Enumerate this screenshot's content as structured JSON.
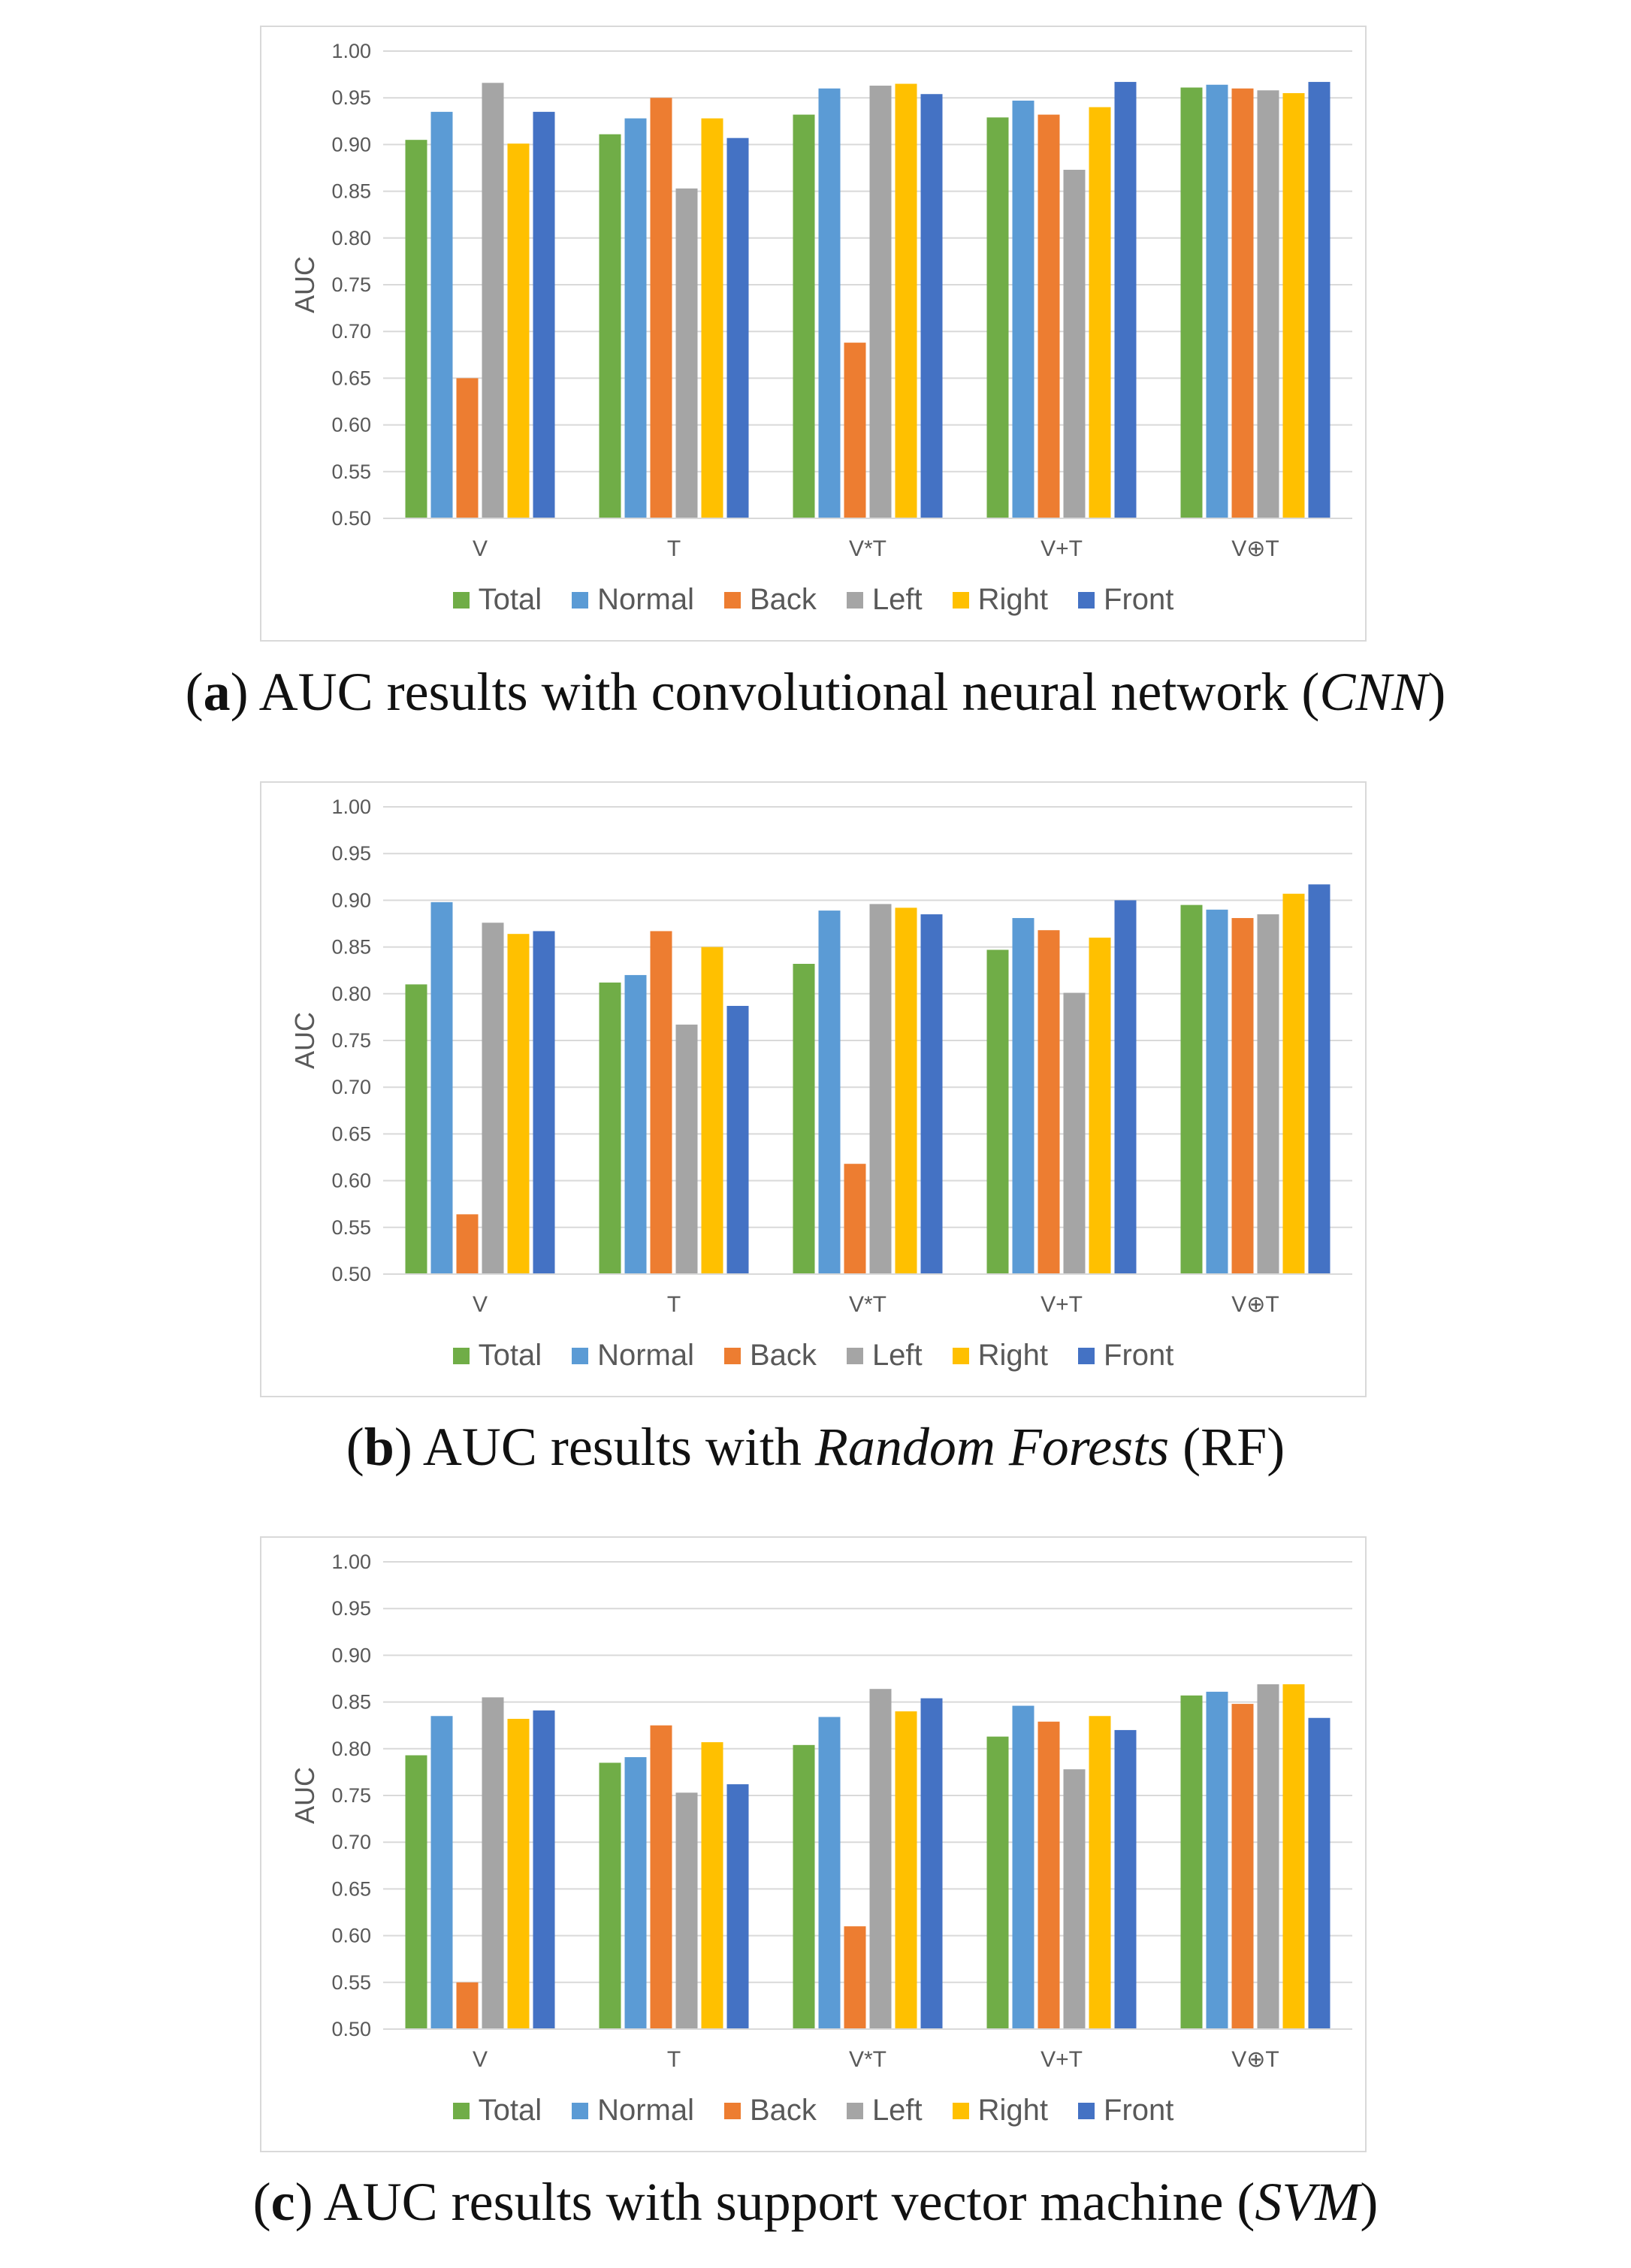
{
  "legend": [
    "Total",
    "Normal",
    "Back",
    "Left",
    "Right",
    "Front"
  ],
  "colors": {
    "Total": "#70ad47",
    "Normal": "#5b9bd5",
    "Back": "#ed7d31",
    "Left": "#a5a5a5",
    "Right": "#ffc000",
    "Front": "#4472c4"
  },
  "panels": [
    {
      "caption_letter": "a",
      "caption_pre": " AUC results with convolutional neural network (",
      "caption_em": "CNN",
      "caption_post": ")",
      "chart_data": {
        "type": "bar",
        "ylabel": "AUC",
        "ylim": [
          0.5,
          1.0
        ],
        "yticks": [
          "0.50",
          "0.55",
          "0.60",
          "0.65",
          "0.70",
          "0.75",
          "0.80",
          "0.85",
          "0.90",
          "0.95",
          "1.00"
        ],
        "categories": [
          "V",
          "T",
          "V*T",
          "V+T",
          "V⊕T"
        ],
        "series": [
          {
            "name": "Total",
            "values": [
              0.905,
              0.911,
              0.932,
              0.929,
              0.961
            ]
          },
          {
            "name": "Normal",
            "values": [
              0.935,
              0.928,
              0.96,
              0.947,
              0.964
            ]
          },
          {
            "name": "Back",
            "values": [
              0.65,
              0.95,
              0.688,
              0.932,
              0.96
            ]
          },
          {
            "name": "Left",
            "values": [
              0.966,
              0.853,
              0.963,
              0.873,
              0.958
            ]
          },
          {
            "name": "Right",
            "values": [
              0.901,
              0.928,
              0.965,
              0.94,
              0.955
            ]
          },
          {
            "name": "Front",
            "values": [
              0.935,
              0.907,
              0.954,
              0.967,
              0.967
            ]
          }
        ]
      }
    },
    {
      "caption_letter": "b",
      "caption_pre": " AUC results with ",
      "caption_em": "Random Forests",
      "caption_post": " (RF)",
      "chart_data": {
        "type": "bar",
        "ylabel": "AUC",
        "ylim": [
          0.5,
          1.0
        ],
        "yticks": [
          "0.50",
          "0.55",
          "0.60",
          "0.65",
          "0.70",
          "0.75",
          "0.80",
          "0.85",
          "0.90",
          "0.95",
          "1.00"
        ],
        "categories": [
          "V",
          "T",
          "V*T",
          "V+T",
          "V⊕T"
        ],
        "series": [
          {
            "name": "Total",
            "values": [
              0.81,
              0.812,
              0.832,
              0.847,
              0.895
            ]
          },
          {
            "name": "Normal",
            "values": [
              0.898,
              0.82,
              0.889,
              0.881,
              0.89
            ]
          },
          {
            "name": "Back",
            "values": [
              0.564,
              0.867,
              0.618,
              0.868,
              0.881
            ]
          },
          {
            "name": "Left",
            "values": [
              0.876,
              0.767,
              0.896,
              0.801,
              0.885
            ]
          },
          {
            "name": "Right",
            "values": [
              0.864,
              0.85,
              0.892,
              0.86,
              0.907
            ]
          },
          {
            "name": "Front",
            "values": [
              0.867,
              0.787,
              0.885,
              0.9,
              0.917
            ]
          }
        ]
      }
    },
    {
      "caption_letter": "c",
      "caption_pre": " AUC results with support vector machine (",
      "caption_em": "SVM",
      "caption_post": ")",
      "chart_data": {
        "type": "bar",
        "ylabel": "AUC",
        "ylim": [
          0.5,
          1.0
        ],
        "yticks": [
          "0.50",
          "0.55",
          "0.60",
          "0.65",
          "0.70",
          "0.75",
          "0.80",
          "0.85",
          "0.90",
          "0.95",
          "1.00"
        ],
        "categories": [
          "V",
          "T",
          "V*T",
          "V+T",
          "V⊕T"
        ],
        "series": [
          {
            "name": "Total",
            "values": [
              0.793,
              0.785,
              0.804,
              0.813,
              0.857
            ]
          },
          {
            "name": "Normal",
            "values": [
              0.835,
              0.791,
              0.834,
              0.846,
              0.861
            ]
          },
          {
            "name": "Back",
            "values": [
              0.55,
              0.825,
              0.61,
              0.829,
              0.848
            ]
          },
          {
            "name": "Left",
            "values": [
              0.855,
              0.753,
              0.864,
              0.778,
              0.869
            ]
          },
          {
            "name": "Right",
            "values": [
              0.832,
              0.807,
              0.84,
              0.835,
              0.869
            ]
          },
          {
            "name": "Front",
            "values": [
              0.841,
              0.762,
              0.854,
              0.82,
              0.833
            ]
          }
        ]
      }
    }
  ]
}
